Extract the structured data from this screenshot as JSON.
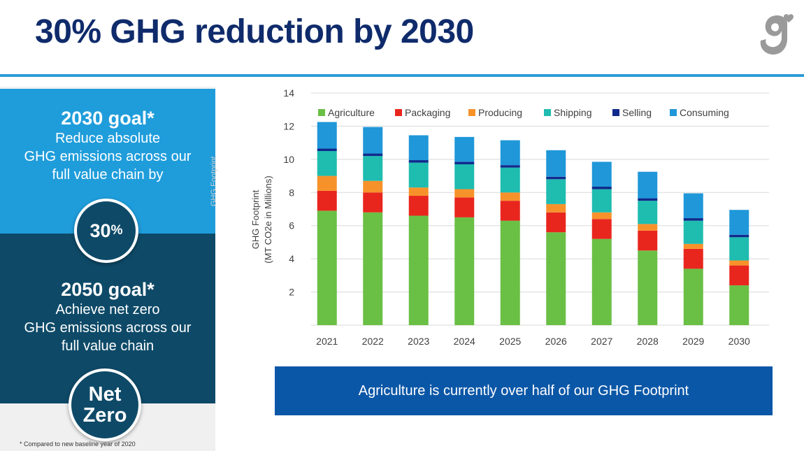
{
  "header": {
    "title": "30% GHG reduction by 2030",
    "logo_icon": "general-mills-g-logo-icon"
  },
  "left_panel": {
    "goal_2030": {
      "heading": "2030 goal*",
      "lines": [
        "Reduce absolute",
        "GHG emissions across our",
        "full value chain by"
      ]
    },
    "badge_30": {
      "number": "30",
      "unit": "%"
    },
    "goal_2050": {
      "heading": "2050 goal*",
      "lines": [
        "Achieve net zero",
        "GHG emissions across our",
        "full value chain"
      ]
    },
    "badge_net_zero": {
      "line1": "Net",
      "line2": "Zero"
    },
    "footnote": "* Compared to new baseline year of 2020",
    "vertical_label": "GHG Footprint"
  },
  "banner": {
    "text": "Agriculture is currently over half of our GHG Footprint"
  },
  "colors": {
    "title": "#0f2b6b",
    "rule": "#2f9bd6",
    "goal_2030_bg": "#1f9ddb",
    "goal_2050_bg": "#0e4a68",
    "banner_bg": "#0b57a7"
  },
  "chart_data": {
    "type": "bar",
    "stacked": true,
    "title": "",
    "xlabel": "",
    "ylabel": "GHG Footprint\n(MT CO2e in Millions)",
    "ylim": [
      0,
      14
    ],
    "yticks": [
      2,
      4,
      6,
      8,
      10,
      12,
      14
    ],
    "grid": true,
    "legend_position": "top",
    "categories": [
      "2021",
      "2022",
      "2023",
      "2024",
      "2025",
      "2026",
      "2027",
      "2028",
      "2029",
      "2030"
    ],
    "series": [
      {
        "name": "Agriculture",
        "color": "#6abf45",
        "values": [
          6.9,
          6.8,
          6.6,
          6.5,
          6.3,
          5.6,
          5.2,
          4.5,
          3.4,
          2.4
        ]
      },
      {
        "name": "Packaging",
        "color": "#e8261e",
        "values": [
          1.2,
          1.2,
          1.2,
          1.2,
          1.2,
          1.2,
          1.2,
          1.2,
          1.2,
          1.2
        ]
      },
      {
        "name": "Producing",
        "color": "#f7922a",
        "values": [
          0.9,
          0.7,
          0.5,
          0.5,
          0.5,
          0.5,
          0.4,
          0.4,
          0.3,
          0.3
        ]
      },
      {
        "name": "Shipping",
        "color": "#1fbcb0",
        "values": [
          1.5,
          1.5,
          1.5,
          1.5,
          1.5,
          1.5,
          1.4,
          1.4,
          1.4,
          1.4
        ]
      },
      {
        "name": "Selling",
        "color": "#102a8c",
        "values": [
          0.15,
          0.15,
          0.15,
          0.15,
          0.15,
          0.15,
          0.15,
          0.15,
          0.15,
          0.15
        ]
      },
      {
        "name": "Consuming",
        "color": "#1f97d9",
        "values": [
          1.6,
          1.6,
          1.5,
          1.5,
          1.5,
          1.6,
          1.5,
          1.6,
          1.5,
          1.5
        ]
      }
    ]
  }
}
